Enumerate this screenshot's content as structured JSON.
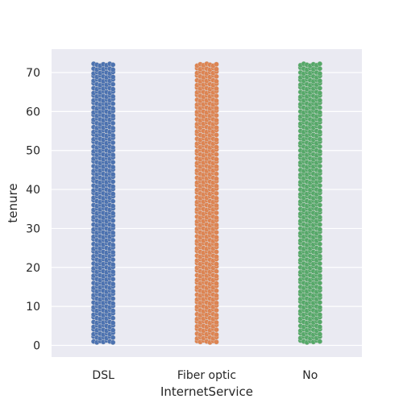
{
  "chart_data": {
    "type": "scatter",
    "subtype": "strip",
    "xlabel": "InternetService",
    "ylabel": "tenure",
    "categories": [
      "DSL",
      "Fiber optic",
      "No"
    ],
    "ylim": [
      -3,
      76
    ],
    "yticks": [
      0,
      10,
      20,
      30,
      40,
      50,
      60,
      70
    ],
    "grid": true,
    "series": [
      {
        "category": "DSL",
        "color": "#4c72b0",
        "min": 1,
        "max": 72
      },
      {
        "category": "Fiber optic",
        "color": "#dd8452",
        "min": 1,
        "max": 72
      },
      {
        "category": "No",
        "color": "#55a868",
        "min": 1,
        "max": 72
      }
    ]
  }
}
